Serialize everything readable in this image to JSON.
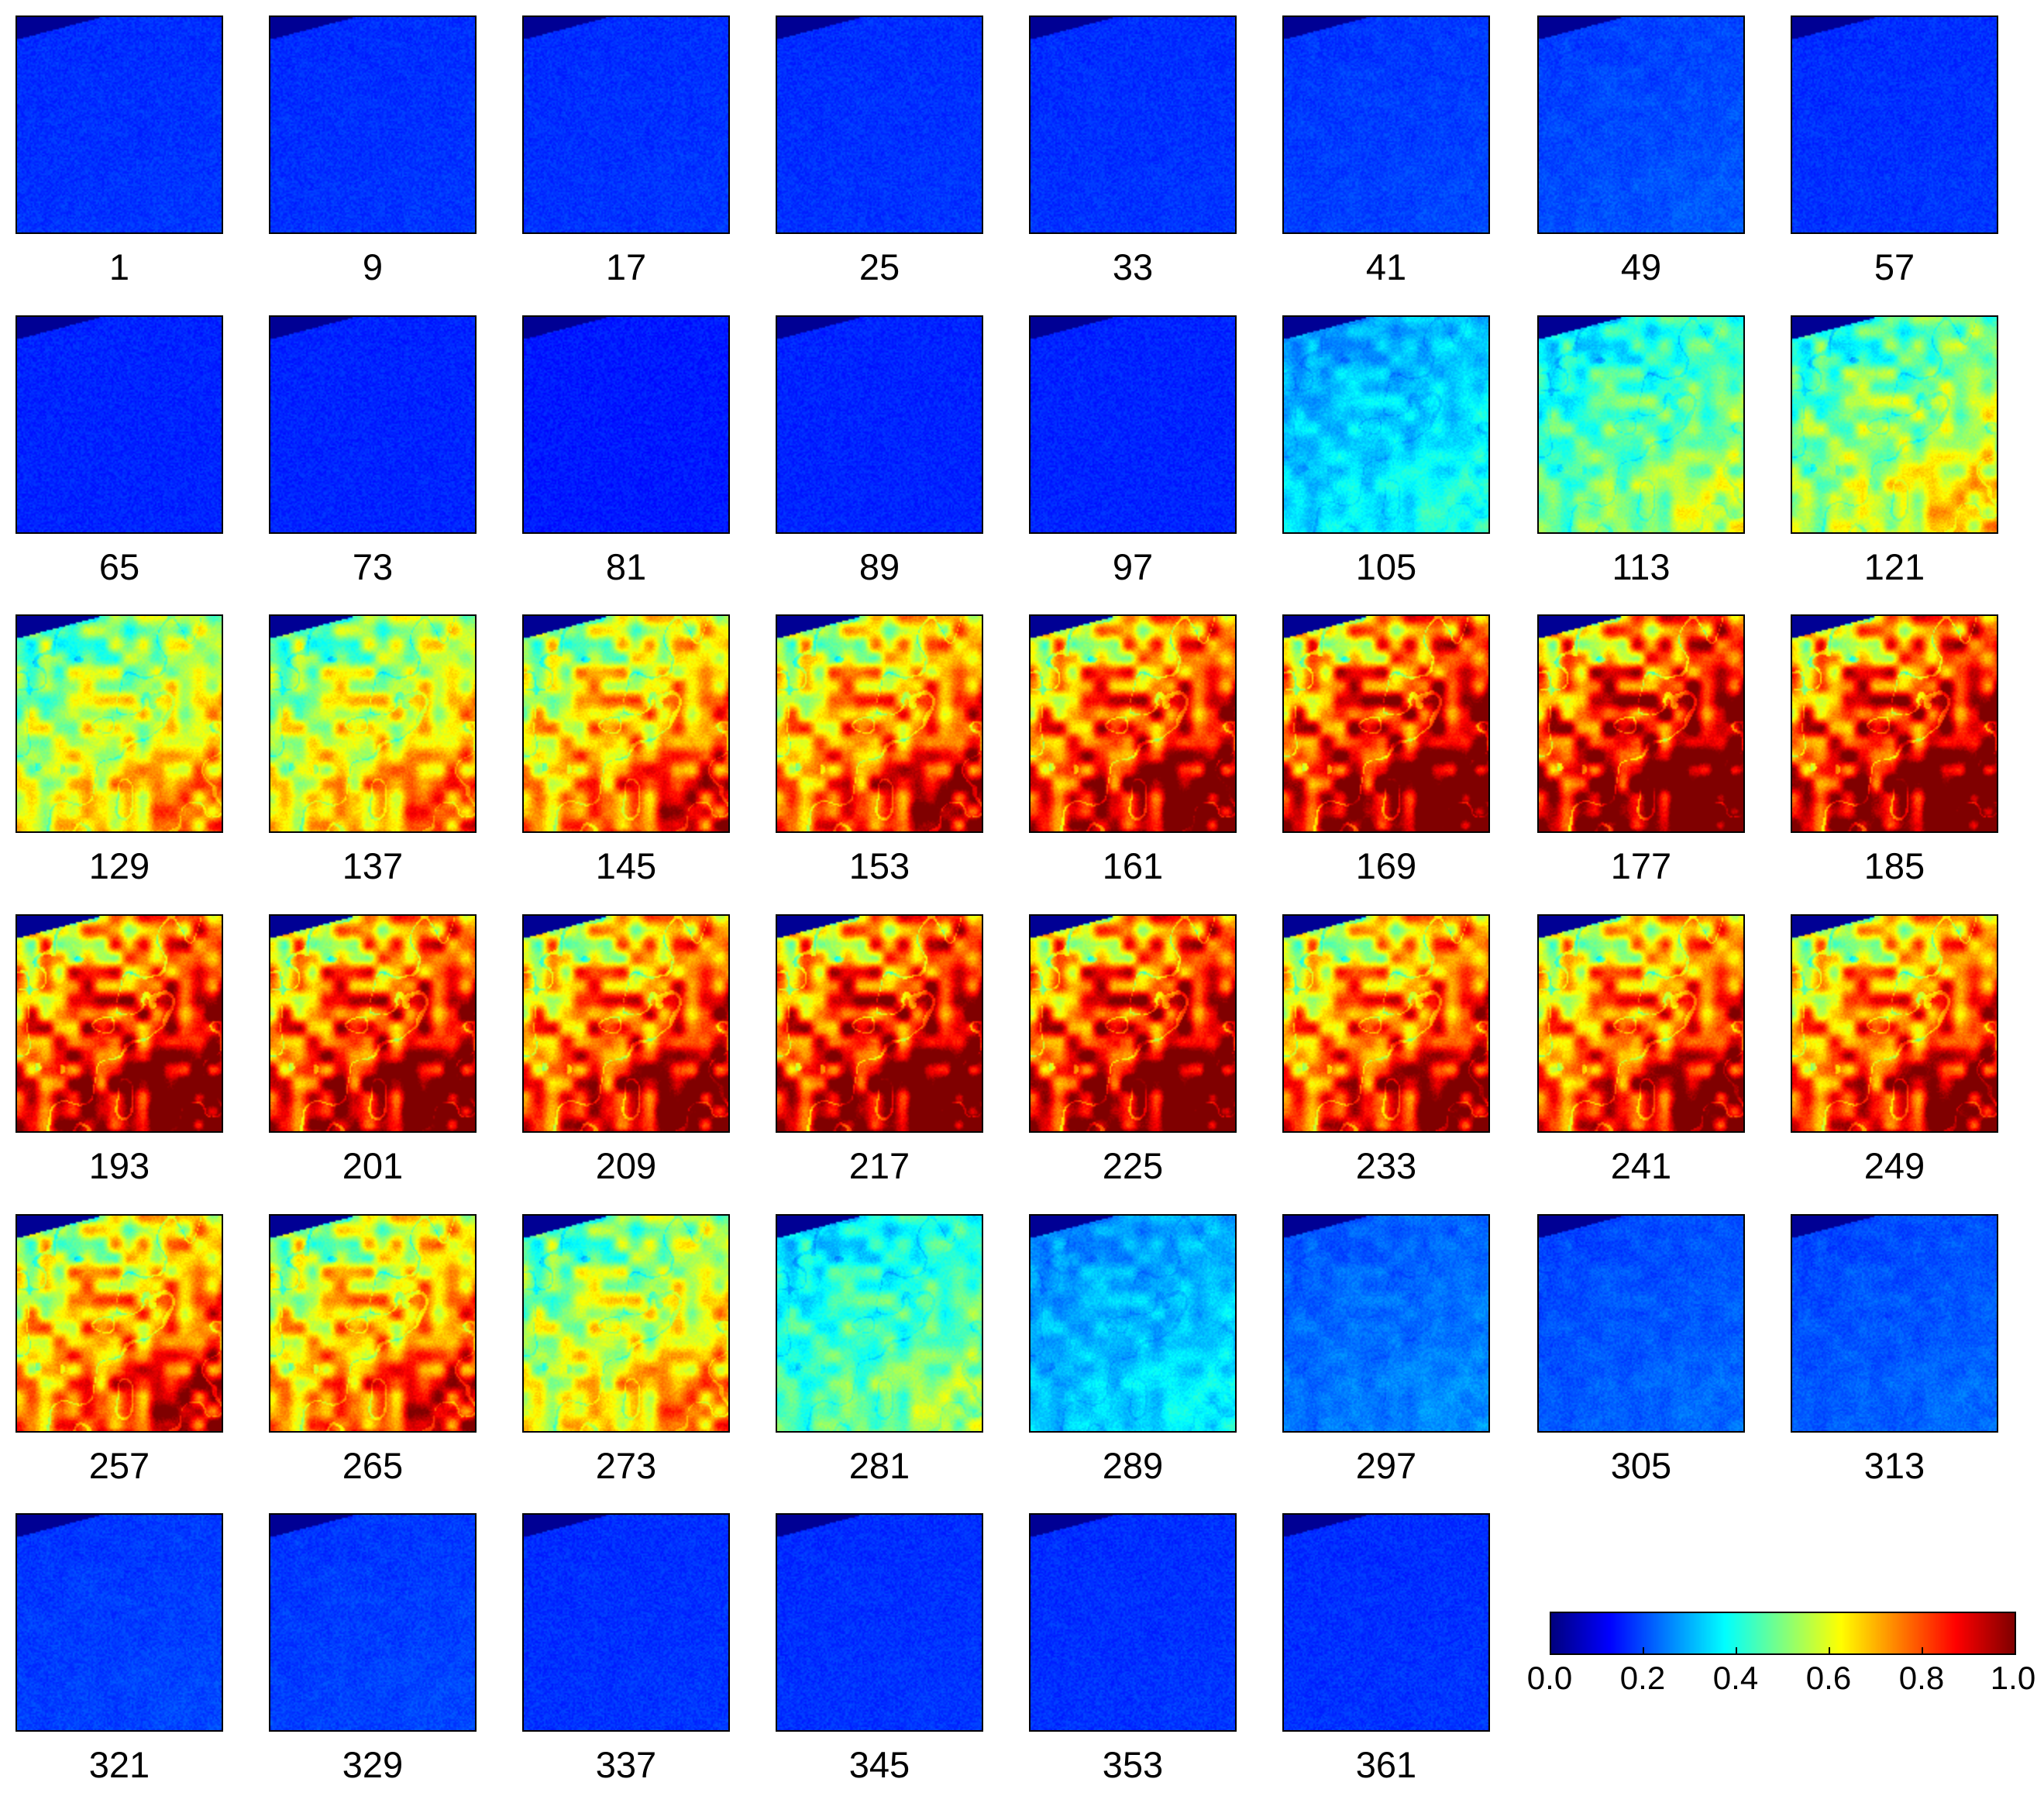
{
  "chart_data": {
    "type": "heatmap",
    "title": "",
    "panel_labels": [
      "1",
      "9",
      "17",
      "25",
      "33",
      "41",
      "49",
      "57",
      "65",
      "73",
      "81",
      "89",
      "97",
      "105",
      "113",
      "121",
      "129",
      "137",
      "145",
      "153",
      "161",
      "169",
      "177",
      "185",
      "193",
      "201",
      "209",
      "217",
      "225",
      "233",
      "241",
      "249",
      "257",
      "265",
      "273",
      "281",
      "289",
      "297",
      "305",
      "313",
      "321",
      "329",
      "337",
      "345",
      "353",
      "361"
    ],
    "panel_mean_values": [
      0.17,
      0.17,
      0.17,
      0.17,
      0.17,
      0.18,
      0.19,
      0.17,
      0.16,
      0.16,
      0.15,
      0.16,
      0.16,
      0.3,
      0.4,
      0.45,
      0.5,
      0.52,
      0.58,
      0.62,
      0.68,
      0.72,
      0.74,
      0.72,
      0.7,
      0.69,
      0.66,
      0.72,
      0.72,
      0.65,
      0.65,
      0.65,
      0.6,
      0.58,
      0.5,
      0.38,
      0.28,
      0.22,
      0.2,
      0.2,
      0.18,
      0.18,
      0.17,
      0.17,
      0.17,
      0.17
    ],
    "colorbar": {
      "range": [
        0.0,
        1.0
      ],
      "colormap": "jet",
      "tick_labels": [
        "0.0",
        "0.2",
        "0.4",
        "0.6",
        "0.8",
        "1.0"
      ]
    }
  },
  "colors": {
    "jet_stops": [
      "#00008f",
      "#0000ff",
      "#00ffff",
      "#ffff00",
      "#ff0000",
      "#800000"
    ]
  }
}
